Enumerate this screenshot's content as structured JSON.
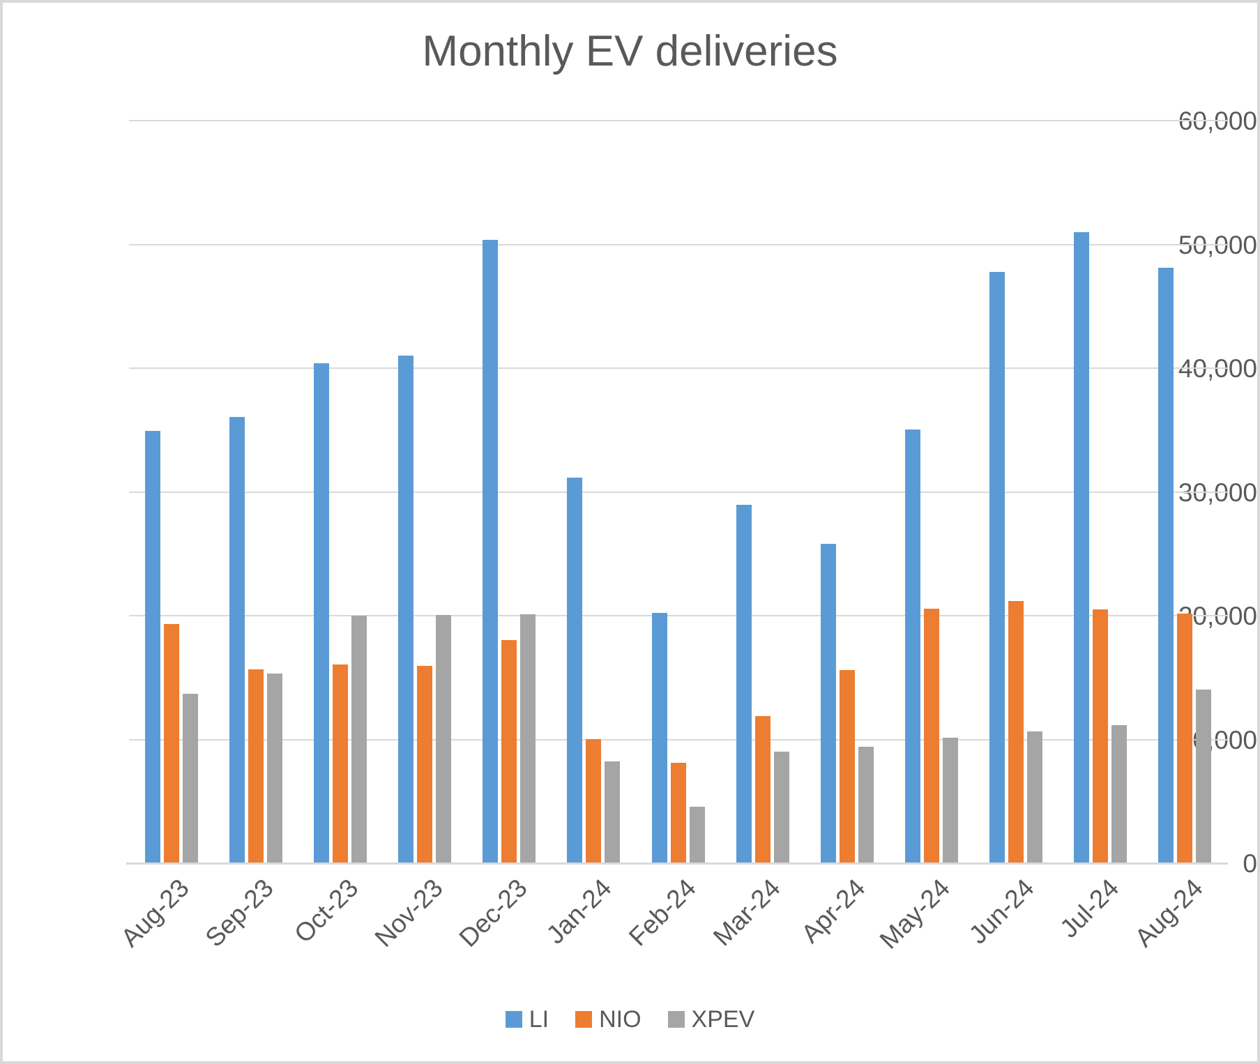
{
  "window": {
    "title": "Monthly EV deliveries"
  },
  "palette": {
    "text_color": "#595959",
    "gridline_color": "#d9d9d9",
    "axis_line_color": "#d9d9d9",
    "frame_border_color": "#d9d9d9",
    "background": "#ffffff"
  },
  "chart_data": {
    "type": "bar",
    "title": "Monthly EV deliveries",
    "xlabel": "",
    "ylabel": "",
    "grid": true,
    "legend_position": "bottom",
    "ylim": [
      0,
      60000
    ],
    "ytick_step": 10000,
    "yticks": [
      {
        "value": 0,
        "label": "0"
      },
      {
        "value": 10000,
        "label": "10,000"
      },
      {
        "value": 20000,
        "label": "20,000"
      },
      {
        "value": 30000,
        "label": "30,000"
      },
      {
        "value": 40000,
        "label": "40,000"
      },
      {
        "value": 50000,
        "label": "50,000"
      },
      {
        "value": 60000,
        "label": "60,000"
      }
    ],
    "categories": [
      "Aug-23",
      "Sep-23",
      "Oct-23",
      "Nov-23",
      "Dec-23",
      "Jan-24",
      "Feb-24",
      "Mar-24",
      "Apr-24",
      "May-24",
      "Jun-24",
      "Jul-24",
      "Aug-24"
    ],
    "series": [
      {
        "name": "LI",
        "color": "#5b9bd5",
        "values": [
          34914,
          36060,
          40422,
          41030,
          50353,
          31165,
          20251,
          28984,
          25787,
          35020,
          47774,
          51000,
          48122
        ]
      },
      {
        "name": "NIO",
        "color": "#ed7d31",
        "values": [
          19329,
          15641,
          16074,
          15959,
          18012,
          10055,
          8132,
          11866,
          15620,
          20544,
          21209,
          20498,
          20176
        ]
      },
      {
        "name": "XPEV",
        "color": "#a5a5a5",
        "values": [
          13690,
          15310,
          20002,
          20041,
          20115,
          8250,
          4545,
          9026,
          9393,
          10146,
          10668,
          11145,
          14036
        ]
      }
    ]
  }
}
